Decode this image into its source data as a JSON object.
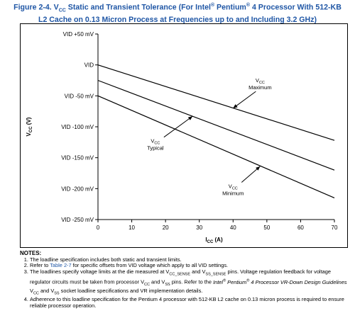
{
  "figure": {
    "label": "Figure 2-4.",
    "v": "V",
    "v_sub": "CC",
    "text_a": " Static and Transient Tolerance (For Intel",
    "reg1": "®",
    "text_b": " Pentium",
    "reg2": "®",
    "text_c": " 4 Processor With 512-KB",
    "line2": "L2 Cache on 0.13 Micron Process at Frequencies up to and Including 3.2 GHz)"
  },
  "chart_data": {
    "type": "line",
    "ylabel": "V",
    "ylabel_sub": "CC",
    "ylabel_unit": "(V)",
    "xlabel": "I",
    "xlabel_sub": "CC",
    "xlabel_unit": "(A)",
    "xlim": [
      0,
      70
    ],
    "ylim": [
      -250,
      50
    ],
    "x_ticks": [
      0,
      10,
      20,
      30,
      40,
      50,
      60,
      70
    ],
    "x_tick_labels": [
      "0",
      "10",
      "20",
      "30",
      "40",
      "50",
      "60",
      "70"
    ],
    "y_ticks": [
      50,
      0,
      -50,
      -100,
      -150,
      -200,
      -250
    ],
    "y_tick_labels": [
      "VID +50 mV",
      "VID",
      "VID -50 mV",
      "VID -100 mV",
      "VID -150 mV",
      "VID -200 mV",
      "VID -250 mV"
    ],
    "grid": false,
    "series": [
      {
        "name": "Maximum",
        "x": [
          0,
          70
        ],
        "y": [
          0,
          -122
        ]
      },
      {
        "name": "Typical",
        "x": [
          0,
          70
        ],
        "y": [
          -25,
          -170
        ]
      },
      {
        "name": "Minimum",
        "x": [
          0,
          70
        ],
        "y": [
          -50,
          -215
        ]
      }
    ],
    "annotations": [
      {
        "series": "Maximum",
        "v": "V",
        "sub": "CC",
        "text": "Maximum",
        "label_at": [
          48,
          -28
        ],
        "arrow_to": [
          40,
          -70
        ]
      },
      {
        "series": "Typical",
        "v": "V",
        "sub": "CC",
        "text": "Typical",
        "label_at": [
          17,
          -126
        ],
        "arrow_to": [
          28,
          -83
        ]
      },
      {
        "series": "Minimum",
        "v": "V",
        "sub": "CC",
        "text": "Minimum",
        "label_at": [
          40,
          -199
        ],
        "arrow_to": [
          48,
          -164
        ]
      }
    ]
  },
  "notes": {
    "title": "NOTES:",
    "n1": "The loadline specification includes both static and transient limits.",
    "n2_a": "Refer to ",
    "n2_link": "Table 2-7",
    "n2_b": " for specific offsets from VID voltage which apply to all VID settings.",
    "n3_a": "The loadlines specify voltage limits at the die measured at V",
    "n3_s1": "CC_SENSE",
    "n3_b": " and V",
    "n3_s2": "SS_SENSE",
    "n3_c": " pins. Voltage regulation feedback for voltage regulator circuits must be taken from processor V",
    "n3_s3": "CC",
    "n3_d": " and V",
    "n3_s4": "SS",
    "n3_e": " pins. Refer to the ",
    "n3_i1": "Intel",
    "n3_r1": "®",
    "n3_i2": " Pentium",
    "n3_r2": "®",
    "n3_i3": " 4 Processor VR-Down Design Guidelines",
    "n3_f": " V",
    "n3_s5": "CC",
    "n3_g": " and V",
    "n3_s6": "SS",
    "n3_h": " socket loadline specifications and VR implementation details.",
    "n4": "Adherence to this loadline specification for the Pentium 4 processor with 512-KB L2 cache on 0.13 micron process is required to ensure reliable processor operation."
  }
}
